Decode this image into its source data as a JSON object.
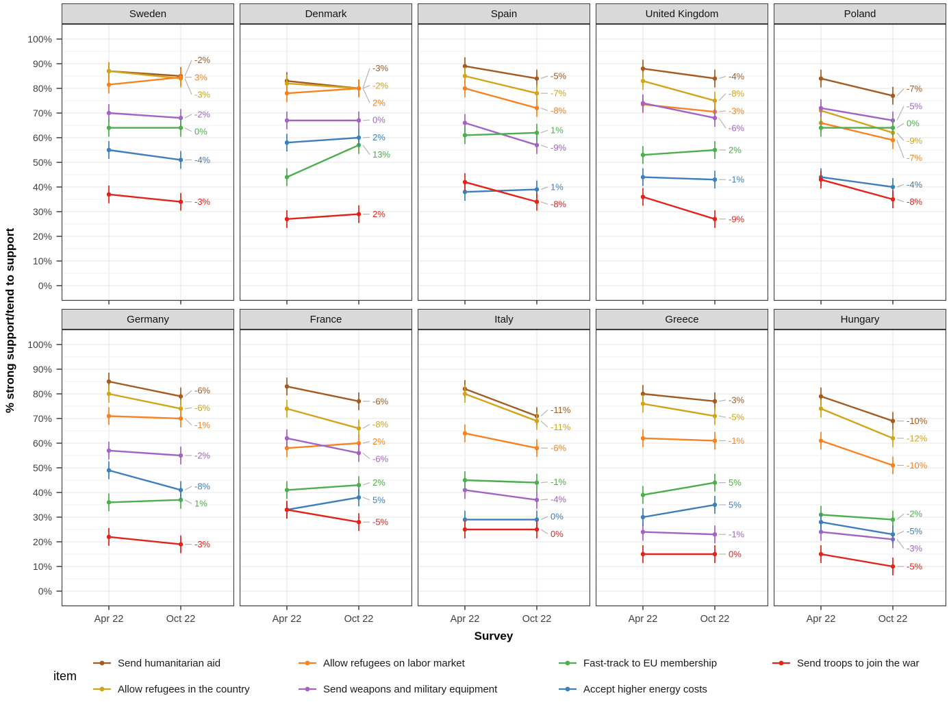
{
  "chart_data": {
    "type": "line",
    "title": "",
    "xlabel": "Survey",
    "ylabel": "% strong support/tend to support",
    "legend_title": "item",
    "x_categories": [
      "Apr 22",
      "Oct 22"
    ],
    "ylim": [
      0,
      100
    ],
    "y_ticks": [
      0,
      10,
      20,
      30,
      40,
      50,
      60,
      70,
      80,
      90,
      100
    ],
    "y_tick_suffix": "%",
    "grid": "on",
    "legend_position": "bottom",
    "error_bar_pct": 2,
    "series": [
      {
        "id": "send_humanitarian_aid",
        "label": "Send humanitarian aid",
        "color": "#A45B22"
      },
      {
        "id": "allow_refugees_in_country",
        "label": "Allow refugees in the country",
        "color": "#D2A419"
      },
      {
        "id": "allow_refugees_on_labor_market",
        "label": "Allow refugees on labor market",
        "color": "#F8821F"
      },
      {
        "id": "send_weapons_military_equipment",
        "label": "Send weapons and military equipment",
        "color": "#A263C6"
      },
      {
        "id": "fast_track_eu_membership",
        "label": "Fast-track to EU membership",
        "color": "#4CAE4C"
      },
      {
        "id": "accept_higher_energy_costs",
        "label": "Accept higher energy costs",
        "color": "#3D7EBD"
      },
      {
        "id": "send_troops_join_war",
        "label": "Send troops to join the war",
        "color": "#E2231A"
      }
    ],
    "facets": [
      {
        "country": "Sweden",
        "values": [
          [
            87,
            85
          ],
          [
            87,
            84
          ],
          [
            81.5,
            84.5
          ],
          [
            70,
            68
          ],
          [
            64,
            64
          ],
          [
            55,
            51
          ],
          [
            37,
            34
          ]
        ],
        "labels": [
          "-2%",
          "-3%",
          "3%",
          "-2%",
          "0%",
          "-4%",
          "-3%"
        ]
      },
      {
        "country": "Denmark",
        "values": [
          [
            83,
            80
          ],
          [
            82,
            80
          ],
          [
            78,
            80
          ],
          [
            67,
            67
          ],
          [
            44,
            57
          ],
          [
            58,
            60
          ],
          [
            27,
            29
          ]
        ],
        "labels": [
          "-3%",
          "-2%",
          "2%",
          "0%",
          "13%",
          "2%",
          "2%"
        ]
      },
      {
        "country": "Spain",
        "values": [
          [
            89,
            84
          ],
          [
            85,
            78
          ],
          [
            80,
            72
          ],
          [
            66,
            57
          ],
          [
            61,
            62
          ],
          [
            38,
            39
          ],
          [
            42,
            34
          ]
        ],
        "labels": [
          "-5%",
          "-7%",
          "-8%",
          "-9%",
          "1%",
          "1%",
          "-8%"
        ]
      },
      {
        "country": "United Kingdom",
        "values": [
          [
            88,
            84
          ],
          [
            83,
            75
          ],
          [
            73.5,
            70.5
          ],
          [
            74,
            68
          ],
          [
            53,
            55
          ],
          [
            44,
            43
          ],
          [
            36,
            27
          ]
        ],
        "labels": [
          "-4%",
          "-8%",
          "-3%",
          "-6%",
          "2%",
          "-1%",
          "-9%"
        ]
      },
      {
        "country": "Poland",
        "values": [
          [
            84,
            77
          ],
          [
            71,
            62
          ],
          [
            66,
            59
          ],
          [
            72,
            67
          ],
          [
            64,
            64
          ],
          [
            44,
            40
          ],
          [
            43,
            35
          ]
        ],
        "labels": [
          "-7%",
          "-9%",
          "-7%",
          "-5%",
          "0%",
          "-4%",
          "-8%"
        ]
      },
      {
        "country": "Germany",
        "values": [
          [
            85,
            79
          ],
          [
            80,
            74
          ],
          [
            71,
            70
          ],
          [
            57,
            55
          ],
          [
            36,
            37
          ],
          [
            49,
            41
          ],
          [
            22,
            19
          ]
        ],
        "labels": [
          "-6%",
          "-6%",
          "-1%",
          "-2%",
          "1%",
          "-8%",
          "-3%"
        ]
      },
      {
        "country": "France",
        "values": [
          [
            83,
            77
          ],
          [
            74,
            66
          ],
          [
            58,
            60
          ],
          [
            62,
            56
          ],
          [
            41,
            43
          ],
          [
            33,
            38
          ],
          [
            33,
            28
          ]
        ],
        "labels": [
          "-6%",
          "-8%",
          "2%",
          "-6%",
          "2%",
          "5%",
          "-5%"
        ]
      },
      {
        "country": "Italy",
        "values": [
          [
            82,
            71
          ],
          [
            80,
            69
          ],
          [
            64,
            58
          ],
          [
            41,
            37
          ],
          [
            45,
            44
          ],
          [
            29,
            29
          ],
          [
            25,
            25
          ]
        ],
        "labels": [
          "-11%",
          "-11%",
          "-6%",
          "-4%",
          "-1%",
          "0%",
          "0%"
        ]
      },
      {
        "country": "Greece",
        "values": [
          [
            80,
            77
          ],
          [
            76,
            71
          ],
          [
            62,
            61
          ],
          [
            24,
            23
          ],
          [
            39,
            44
          ],
          [
            30,
            35
          ],
          [
            15,
            15
          ]
        ],
        "labels": [
          "-3%",
          "-5%",
          "-1%",
          "-1%",
          "5%",
          "5%",
          "0%"
        ]
      },
      {
        "country": "Hungary",
        "values": [
          [
            79,
            69
          ],
          [
            74,
            62
          ],
          [
            61,
            51
          ],
          [
            24,
            21
          ],
          [
            31,
            29
          ],
          [
            28,
            23
          ],
          [
            15,
            10
          ]
        ],
        "labels": [
          "-10%",
          "-12%",
          "-10%",
          "-3%",
          "-2%",
          "-5%",
          "-5%"
        ]
      }
    ]
  }
}
